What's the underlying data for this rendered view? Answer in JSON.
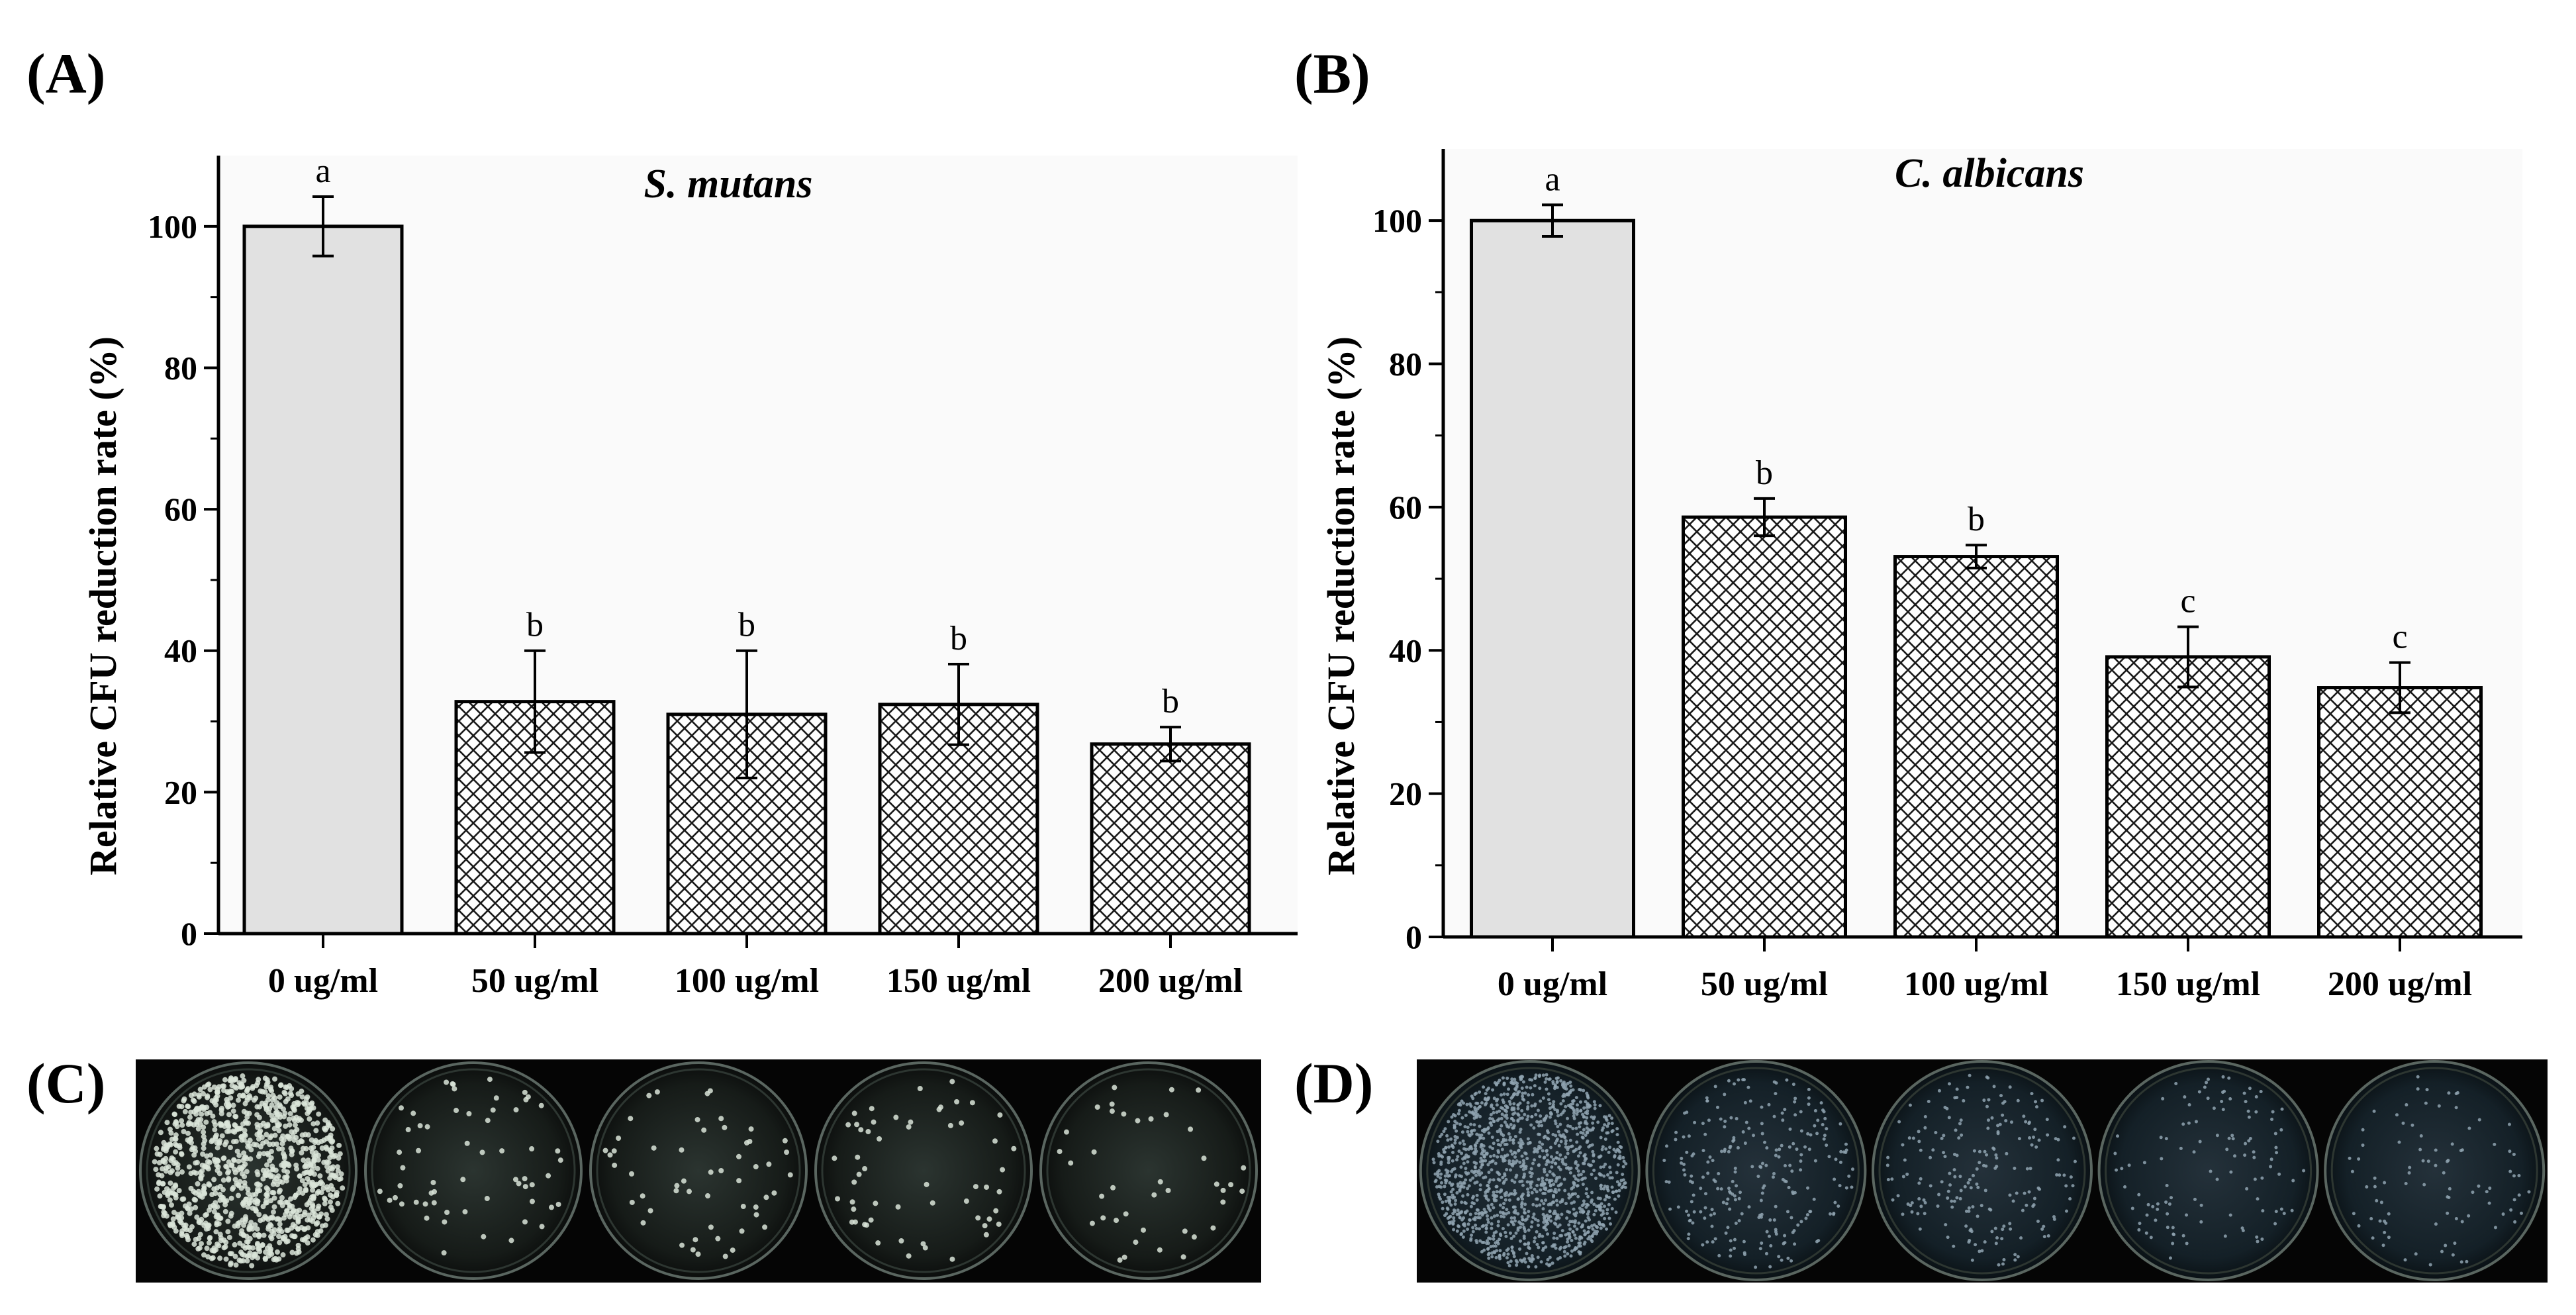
{
  "panel_labels": {
    "a": "(A)",
    "b": "(B)",
    "c": "(C)",
    "d": "(D)"
  },
  "colors": {
    "control_fill": "#e1e1e1",
    "hatch_line": "#1a1a1a",
    "axis": "#000000",
    "plot_bg": "#fafafa",
    "plate_bg": "#050505"
  },
  "chart_data": [
    {
      "type": "bar",
      "title": "S. mutans",
      "xlabel": "",
      "ylabel": "Relative CFU reduction rate (%)",
      "ylim": [
        0,
        110
      ],
      "yticks": [
        0,
        20,
        40,
        60,
        80,
        100
      ],
      "categories": [
        "0 ug/ml",
        "50 ug/ml",
        "100 ug/ml",
        "150 ug/ml",
        "200 ug/ml"
      ],
      "values": [
        100,
        32.8,
        31,
        32.4,
        26.8
      ],
      "errors": [
        4.2,
        7.2,
        9,
        5.7,
        2.4
      ],
      "significance": [
        "a",
        "b",
        "b",
        "b",
        "b"
      ],
      "fill_pattern": [
        "solid",
        "crosshatch",
        "crosshatch",
        "crosshatch",
        "crosshatch"
      ]
    },
    {
      "type": "bar",
      "title": "C. albicans",
      "xlabel": "",
      "ylabel": "Relative CFU reduction rate (%)",
      "ylim": [
        0,
        110
      ],
      "yticks": [
        0,
        20,
        40,
        60,
        80,
        100
      ],
      "categories": [
        "0 ug/ml",
        "50 ug/ml",
        "100 ug/ml",
        "150 ug/ml",
        "200 ug/ml"
      ],
      "values": [
        100,
        58.6,
        53.1,
        39.1,
        34.8
      ],
      "errors": [
        2.2,
        2.6,
        1.6,
        4.2,
        3.5
      ],
      "significance": [
        "a",
        "b",
        "b",
        "c",
        "c"
      ],
      "fill_pattern": [
        "solid",
        "crosshatch",
        "crosshatch",
        "crosshatch",
        "crosshatch"
      ]
    }
  ],
  "plates": {
    "c": {
      "organism": "S. mutans",
      "colony_density": [
        1.0,
        0.33,
        0.31,
        0.32,
        0.27
      ]
    },
    "d": {
      "organism": "C. albicans",
      "colony_density": [
        1.0,
        0.59,
        0.53,
        0.39,
        0.35
      ]
    }
  }
}
